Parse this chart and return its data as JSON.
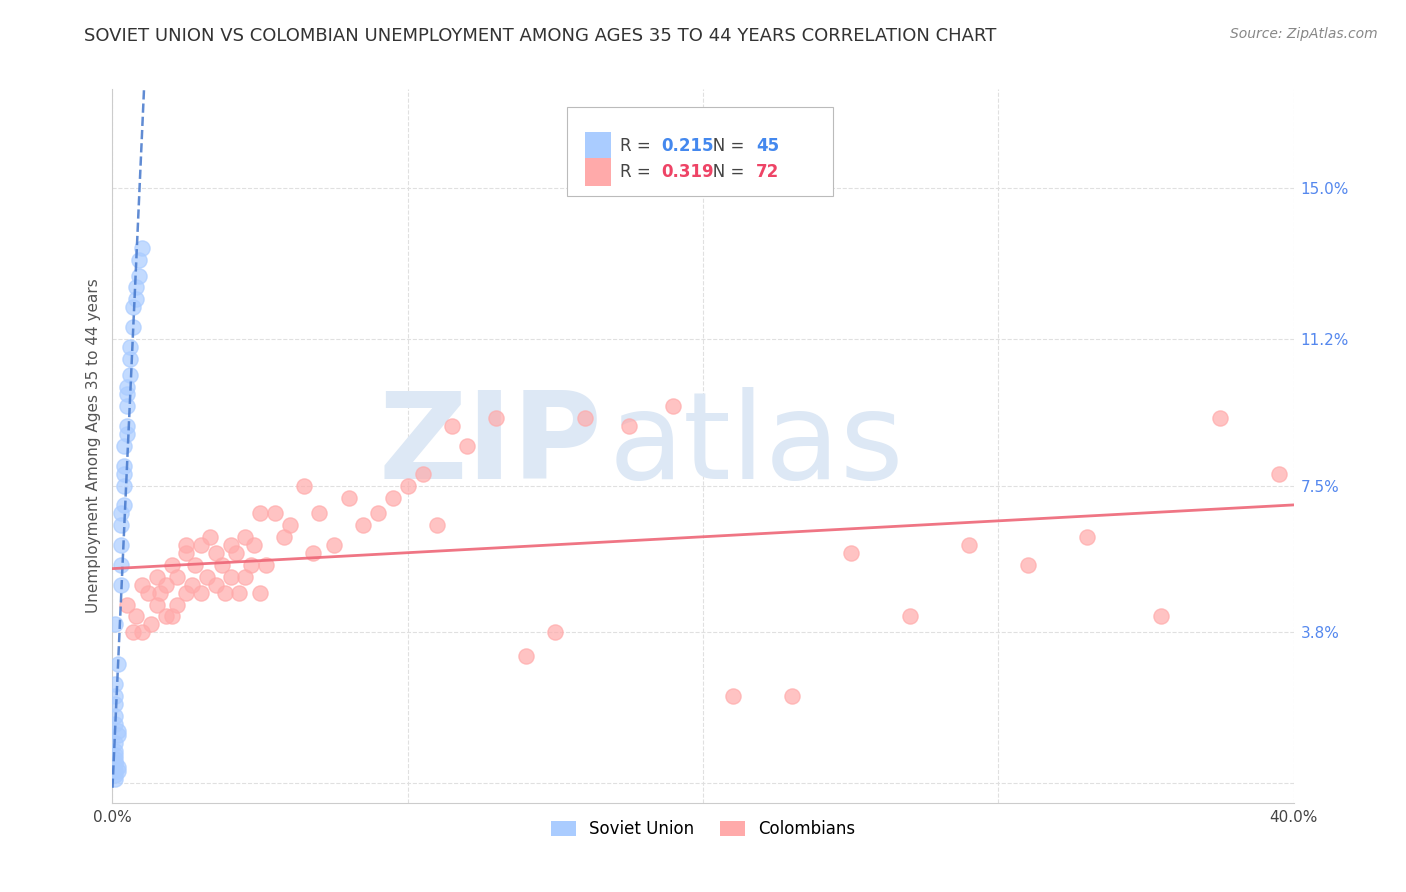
{
  "title": "SOVIET UNION VS COLOMBIAN UNEMPLOYMENT AMONG AGES 35 TO 44 YEARS CORRELATION CHART",
  "source": "Source: ZipAtlas.com",
  "ylabel": "Unemployment Among Ages 35 to 44 years",
  "xlim": [
    0.0,
    0.4
  ],
  "ylim": [
    -0.005,
    0.175
  ],
  "yticks": [
    0.0,
    0.038,
    0.075,
    0.112,
    0.15
  ],
  "ytick_labels": [
    "",
    "3.8%",
    "7.5%",
    "11.2%",
    "15.0%"
  ],
  "xticks": [
    0.0,
    0.1,
    0.2,
    0.3,
    0.4
  ],
  "xtick_labels": [
    "0.0%",
    "",
    "",
    "",
    "40.0%"
  ],
  "soviet_R": 0.215,
  "soviet_N": 45,
  "colombian_R": 0.319,
  "colombian_N": 72,
  "soviet_color": "#aaccff",
  "colombian_color": "#ffaaaa",
  "soviet_trend_color": "#4477cc",
  "colombian_trend_color": "#ee6677",
  "background_color": "#ffffff",
  "grid_color": "#e0e0e0",
  "watermark_zip": "ZIP",
  "watermark_atlas": "atlas",
  "watermark_color": "#dde8f5",
  "title_fontsize": 13,
  "axis_label_fontsize": 11,
  "tick_fontsize": 11,
  "legend_fontsize": 12,
  "soviet_x": [
    0.001,
    0.001,
    0.001,
    0.002,
    0.002,
    0.001,
    0.001,
    0.001,
    0.001,
    0.001,
    0.001,
    0.002,
    0.002,
    0.001,
    0.001,
    0.001,
    0.001,
    0.001,
    0.002,
    0.001,
    0.003,
    0.003,
    0.003,
    0.003,
    0.003,
    0.004,
    0.004,
    0.004,
    0.004,
    0.004,
    0.005,
    0.005,
    0.005,
    0.005,
    0.005,
    0.006,
    0.006,
    0.006,
    0.007,
    0.007,
    0.008,
    0.008,
    0.009,
    0.009,
    0.01
  ],
  "soviet_y": [
    0.001,
    0.002,
    0.003,
    0.003,
    0.004,
    0.005,
    0.005,
    0.006,
    0.007,
    0.008,
    0.01,
    0.012,
    0.013,
    0.015,
    0.017,
    0.02,
    0.022,
    0.025,
    0.03,
    0.04,
    0.05,
    0.055,
    0.06,
    0.065,
    0.068,
    0.07,
    0.075,
    0.078,
    0.08,
    0.085,
    0.088,
    0.09,
    0.095,
    0.098,
    0.1,
    0.103,
    0.107,
    0.11,
    0.115,
    0.12,
    0.122,
    0.125,
    0.128,
    0.132,
    0.135
  ],
  "colombian_x": [
    0.005,
    0.007,
    0.008,
    0.01,
    0.01,
    0.012,
    0.013,
    0.015,
    0.015,
    0.016,
    0.018,
    0.018,
    0.02,
    0.02,
    0.022,
    0.022,
    0.025,
    0.025,
    0.025,
    0.027,
    0.028,
    0.03,
    0.03,
    0.032,
    0.033,
    0.035,
    0.035,
    0.037,
    0.038,
    0.04,
    0.04,
    0.042,
    0.043,
    0.045,
    0.045,
    0.047,
    0.048,
    0.05,
    0.05,
    0.052,
    0.055,
    0.058,
    0.06,
    0.065,
    0.068,
    0.07,
    0.075,
    0.08,
    0.085,
    0.09,
    0.095,
    0.1,
    0.105,
    0.11,
    0.115,
    0.12,
    0.13,
    0.14,
    0.15,
    0.16,
    0.175,
    0.19,
    0.21,
    0.23,
    0.25,
    0.27,
    0.29,
    0.31,
    0.33,
    0.355,
    0.375,
    0.395
  ],
  "colombian_y": [
    0.045,
    0.038,
    0.042,
    0.05,
    0.038,
    0.048,
    0.04,
    0.045,
    0.052,
    0.048,
    0.042,
    0.05,
    0.055,
    0.042,
    0.052,
    0.045,
    0.058,
    0.048,
    0.06,
    0.05,
    0.055,
    0.06,
    0.048,
    0.052,
    0.062,
    0.05,
    0.058,
    0.055,
    0.048,
    0.06,
    0.052,
    0.058,
    0.048,
    0.062,
    0.052,
    0.055,
    0.06,
    0.068,
    0.048,
    0.055,
    0.068,
    0.062,
    0.065,
    0.075,
    0.058,
    0.068,
    0.06,
    0.072,
    0.065,
    0.068,
    0.072,
    0.075,
    0.078,
    0.065,
    0.09,
    0.085,
    0.092,
    0.032,
    0.038,
    0.092,
    0.09,
    0.095,
    0.022,
    0.022,
    0.058,
    0.042,
    0.06,
    0.055,
    0.062,
    0.042,
    0.092,
    0.078
  ]
}
